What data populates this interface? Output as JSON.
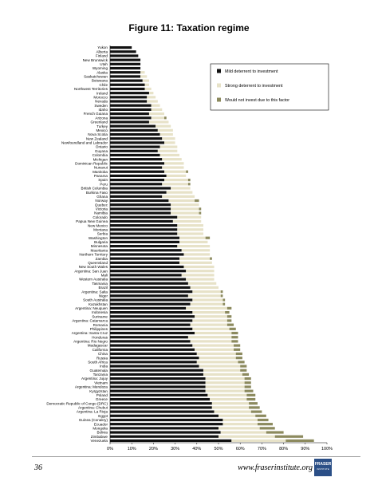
{
  "title": "Figure 11: Taxation regime",
  "footer": {
    "page_number": "36",
    "website": "www.fraserinstitute.org",
    "logo_text": "FRASER",
    "logo_subtext": "INSTITUTE"
  },
  "colors": {
    "mild": "#111111",
    "strong": "#e7e2c8",
    "not_invest": "#8c8a5e"
  },
  "chart_data": {
    "type": "bar",
    "orientation": "horizontal",
    "stacked": true,
    "title": "Figure 11: Taxation regime",
    "xlim": [
      0,
      100
    ],
    "x_ticks": [
      "0%",
      "10%",
      "20%",
      "30%",
      "40%",
      "50%",
      "60%",
      "70%",
      "80%",
      "90%",
      "100%"
    ],
    "legend_position": "top-right",
    "categories": [
      "Yukon",
      "Alberta",
      "Finland",
      "New Brunswick",
      "Utah",
      "Wyoming",
      "Alaska",
      "Saskatchewan",
      "Botswana",
      "Chile",
      "Northwest Territories",
      "Ireland",
      "Morocco",
      "Nevada",
      "Sweden",
      "Idaho",
      "French Guiana",
      "Arizona",
      "Greenland",
      "Turkey",
      "Mexico",
      "Nova Scotia",
      "New Zealand",
      "Newfoundland and Labrador",
      "Ontario",
      "Guyana",
      "Colombia",
      "Michigan",
      "Dominican Republic",
      "Nunavut",
      "Manitoba",
      "Panama",
      "Spain",
      "Peru",
      "British Columbia",
      "Burkina Faso",
      "Ghana",
      "Norway",
      "Quebec",
      "Victoria",
      "Namibia",
      "Colorado",
      "Papua New Guinea",
      "New Mexico",
      "Montana",
      "Serbia",
      "Washington",
      "Bulgaria",
      "Minnesota",
      "Mauritania",
      "Northern Territory",
      "Zambia",
      "Queensland",
      "New South Wales",
      "Argentina: San Juan",
      "Mali",
      "Western Australia",
      "Tasmania",
      "Brazil",
      "Argentina: Salta",
      "Niger",
      "South Australia",
      "Kazakhstan",
      "Argentina: Neuquen",
      "Indonesia",
      "Suriname",
      "Argentina: Catamarca",
      "Romania",
      "Philippines",
      "Argentina: Santa Cruz",
      "Honduras",
      "Argentina: Rio Negro",
      "Madagascar",
      "California",
      "China",
      "Russia",
      "South Africa",
      "India",
      "Guatemala",
      "Tanzania",
      "Argentina: Jujuy",
      "Vietnam",
      "Argentina: Mendoza",
      "Kyrgyzstan",
      "Poland",
      "Greece",
      "Democratic Republic of Congo (DRC)",
      "Argentina: Chubut",
      "Argentina: La Rioja",
      "Egypt",
      "Guinea (Conakry)",
      "Ecuador",
      "Mongolia",
      "Bolivia",
      "Zimbabwe",
      "Venezuela"
    ],
    "series": [
      {
        "name": "Mild deterrent to investment",
        "values": [
          10,
          12,
          13,
          14,
          14,
          14,
          14,
          14,
          15,
          16,
          16,
          18,
          17,
          17,
          19,
          19,
          18,
          19,
          18,
          21,
          22,
          23,
          24,
          25,
          23,
          22,
          23,
          24,
          25,
          24,
          25,
          26,
          25,
          24,
          28,
          26,
          24,
          27,
          28,
          28,
          28,
          31,
          29,
          31,
          31,
          31,
          32,
          32,
          31,
          33,
          34,
          32,
          32,
          34,
          35,
          33,
          35,
          36,
          37,
          38,
          36,
          38,
          37,
          35,
          38,
          39,
          38,
          37,
          38,
          39,
          36,
          37,
          38,
          39,
          40,
          41,
          40,
          41,
          43,
          43,
          44,
          44,
          44,
          44,
          45,
          46,
          47,
          47,
          48,
          50,
          52,
          52,
          50,
          51,
          50,
          56
        ]
      },
      {
        "name": "Strong deterrent to investment",
        "values": [
          0,
          0,
          0,
          0,
          0,
          0,
          2,
          3,
          3,
          2,
          3,
          2,
          4,
          5,
          4,
          5,
          7,
          6,
          9,
          7,
          7,
          6,
          6,
          5,
          8,
          9,
          9,
          9,
          9,
          10,
          10,
          9,
          11,
          12,
          9,
          12,
          15,
          12,
          13,
          13,
          13,
          11,
          13,
          12,
          12,
          12,
          12,
          13,
          15,
          13,
          12,
          14,
          15,
          14,
          13,
          15,
          13,
          13,
          13,
          13,
          15,
          14,
          15,
          19,
          15,
          15,
          16,
          17,
          17,
          17,
          20,
          19,
          19,
          18,
          18,
          17,
          19,
          19,
          17,
          18,
          18,
          18,
          18,
          18,
          18,
          17,
          17,
          17,
          17,
          17,
          16,
          16,
          19,
          21,
          26,
          25
        ]
      },
      {
        "name": "Would not invest due to this factor",
        "values": [
          0,
          0,
          0,
          0,
          0,
          0,
          0,
          0,
          0,
          0,
          0,
          0,
          0,
          0,
          0,
          0,
          0,
          1,
          0,
          0,
          0,
          0,
          0,
          0,
          0,
          0,
          0,
          0,
          0,
          0,
          1,
          0,
          1,
          1,
          0,
          0,
          0,
          2,
          0,
          1,
          1,
          0,
          0,
          0,
          0,
          0,
          2,
          0,
          0,
          0,
          0,
          1,
          0,
          0,
          0,
          0,
          0,
          0,
          0,
          1,
          1,
          1,
          1,
          2,
          2,
          2,
          2,
          3,
          3,
          3,
          3,
          3,
          3,
          3,
          3,
          3,
          3,
          3,
          3,
          3,
          3,
          3,
          3,
          4,
          4,
          4,
          4,
          5,
          5,
          5,
          5,
          7,
          7,
          8,
          13,
          13
        ]
      }
    ]
  }
}
